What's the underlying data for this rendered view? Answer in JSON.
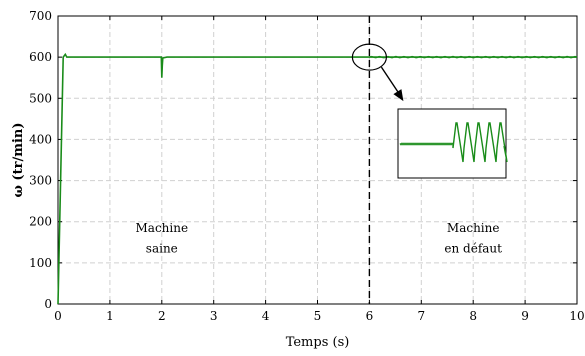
{
  "chart_data": {
    "type": "line",
    "title": "",
    "xlabel": "Temps (s)",
    "ylabel": "ω (tr/min)",
    "xlim": [
      0,
      10
    ],
    "ylim": [
      0,
      700
    ],
    "xticks": [
      0,
      1,
      2,
      3,
      4,
      5,
      6,
      7,
      8,
      9,
      10
    ],
    "yticks": [
      0,
      100,
      200,
      300,
      400,
      500,
      600,
      700
    ],
    "grid": true,
    "series_color": "#1a8c1a",
    "series": [
      {
        "x": [
          0,
          0.1,
          0.14,
          0.17,
          0.2,
          1.99,
          2.0,
          2.01,
          2.02,
          2.1,
          6.0,
          10.0
        ],
        "y": [
          0,
          600,
          607,
          600,
          600,
          600,
          550,
          580,
          598,
          600,
          600,
          600
        ]
      }
    ],
    "fault_time": 6.0,
    "annotations": [
      {
        "lines": [
          "Machine",
          "saine"
        ],
        "x": 2.0,
        "y": [
          175,
          125
        ]
      },
      {
        "lines": [
          "Machine",
          "en défaut"
        ],
        "x": 8.0,
        "y": [
          175,
          125
        ]
      }
    ],
    "zoom_inset": {
      "center": [
        6.0,
        600
      ],
      "description_icon": "magnifier-circle-with-arrow"
    }
  }
}
